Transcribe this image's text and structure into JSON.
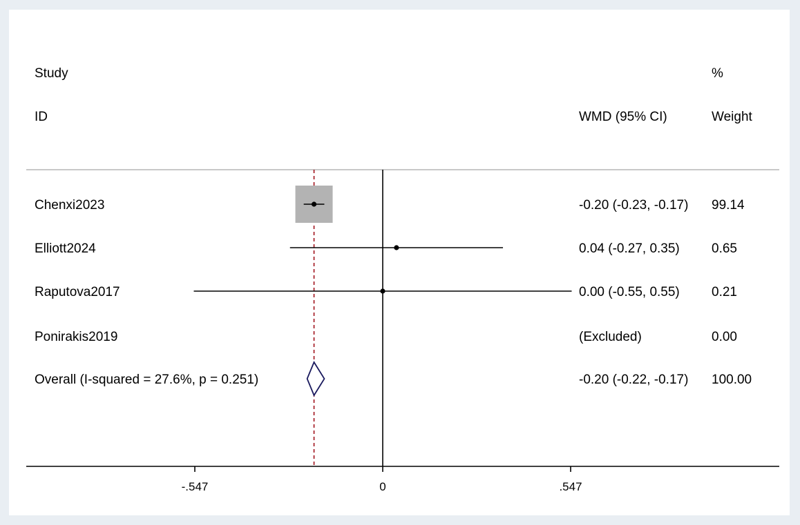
{
  "chart_data": {
    "type": "forest",
    "headers": {
      "study_line1": "Study",
      "study_line2": "ID",
      "effect": "WMD (95% CI)",
      "weight_line1": "%",
      "weight_line2": "Weight"
    },
    "null_line": 0,
    "overall_estimate": -0.2,
    "x_ticks": [
      -0.547,
      0,
      0.547
    ],
    "x_tick_labels": [
      "-.547",
      "0",
      ".547"
    ],
    "xlim": [
      -0.93,
      1.16
    ],
    "studies": [
      {
        "id": "Chenxi2023",
        "est": -0.2,
        "lo": -0.23,
        "hi": -0.17,
        "weight": 99.14,
        "ci_text": "-0.20 (-0.23, -0.17)",
        "weight_text": "99.14",
        "excluded": false
      },
      {
        "id": "Elliott2024",
        "est": 0.04,
        "lo": -0.27,
        "hi": 0.35,
        "weight": 0.65,
        "ci_text": "0.04 (-0.27, 0.35)",
        "weight_text": "0.65",
        "excluded": false
      },
      {
        "id": "Raputova2017",
        "est": 0.0,
        "lo": -0.55,
        "hi": 0.55,
        "weight": 0.21,
        "ci_text": "0.00 (-0.55, 0.55)",
        "weight_text": "0.21",
        "excluded": false
      },
      {
        "id": "Ponirakis2019",
        "est": null,
        "lo": null,
        "hi": null,
        "weight": 0,
        "ci_text": "(Excluded)",
        "weight_text": "0.00",
        "excluded": true
      }
    ],
    "overall": {
      "label": "Overall  (I-squared = 27.6%, p = 0.251)",
      "est": -0.2,
      "lo": -0.22,
      "hi": -0.17,
      "ci_text": "-0.20 (-0.22, -0.17)",
      "weight_text": "100.00"
    },
    "colors": {
      "box": "#b3b3b3",
      "diamond": "#1a1a5e",
      "ref_line": "#a0101a",
      "line": "#000000",
      "separator": "#c8c8c8"
    }
  }
}
